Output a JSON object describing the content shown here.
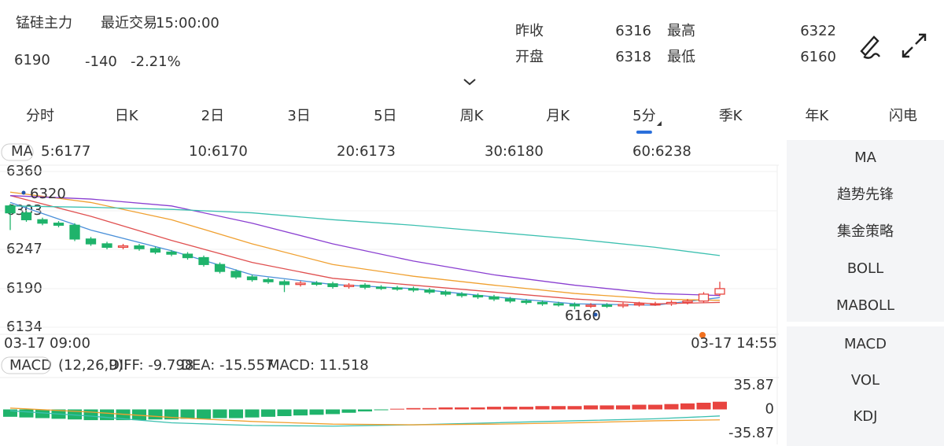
{
  "header": {
    "name": "锰硅主力",
    "last_trade_label": "最近交易",
    "last_trade_time": "15:00:00",
    "price": "6190",
    "change": "-140",
    "change_pct": "-2.21%",
    "stats": [
      {
        "label": "昨收",
        "value": "6316"
      },
      {
        "label": "最高",
        "value": "6322"
      },
      {
        "label": "开盘",
        "value": "6318"
      },
      {
        "label": "最低",
        "value": "6160"
      }
    ]
  },
  "tabs": [
    "分时",
    "日K",
    "2日",
    "3日",
    "5日",
    "周K",
    "月K",
    "5分",
    "季K",
    "年K",
    "闪电"
  ],
  "kline": {
    "legend": [
      {
        "text": "MA",
        "color": "#555555"
      },
      {
        "text": "5:6177",
        "color": "#4a90d9"
      },
      {
        "text": "10:6170",
        "color": "#e05050"
      },
      {
        "text": "20:6173",
        "color": "#f0a030"
      },
      {
        "text": "30:6180",
        "color": "#2255aa"
      },
      {
        "text": "60:6238",
        "color": "#3cc0b0"
      }
    ],
    "ylim": [
      6134,
      6360
    ],
    "yticks": [
      6360,
      6303,
      6247,
      6190,
      6134
    ],
    "x_labels": [
      "03-17 09:00",
      "03-17 14:55"
    ],
    "annotations": [
      "6320",
      "6160"
    ],
    "up_color": "#e8443f",
    "down_color": "#1fb36b",
    "open": [
      6310,
      6300,
      6290,
      6285,
      6282,
      6262,
      6255,
      6250,
      6252,
      6248,
      6243,
      6240,
      6235,
      6225,
      6215,
      6207,
      6203,
      6200,
      6196,
      6198,
      6197,
      6193,
      6195,
      6192,
      6191,
      6190,
      6188,
      6185,
      6182,
      6180,
      6178,
      6175,
      6172,
      6170,
      6168,
      6167,
      6165,
      6166,
      6165,
      6167,
      6168,
      6168,
      6170,
      6172,
      6182
    ],
    "high": [
      6313,
      6303,
      6293,
      6288,
      6285,
      6265,
      6258,
      6255,
      6255,
      6251,
      6246,
      6243,
      6238,
      6228,
      6218,
      6210,
      6206,
      6203,
      6201,
      6201,
      6200,
      6198,
      6198,
      6195,
      6194,
      6193,
      6191,
      6188,
      6185,
      6183,
      6181,
      6178,
      6175,
      6173,
      6171,
      6170,
      6169,
      6169,
      6170,
      6171,
      6171,
      6173,
      6175,
      6185,
      6200
    ],
    "low": [
      6275,
      6287,
      6282,
      6279,
      6259,
      6252,
      6247,
      6247,
      6245,
      6240,
      6237,
      6232,
      6222,
      6212,
      6204,
      6200,
      6197,
      6185,
      6193,
      6194,
      6190,
      6190,
      6189,
      6188,
      6187,
      6185,
      6182,
      6179,
      6177,
      6175,
      6172,
      6169,
      6167,
      6165,
      6164,
      6160,
      6162,
      6162,
      6162,
      6164,
      6165,
      6165,
      6167,
      6169,
      6179
    ],
    "close": [
      6300,
      6290,
      6285,
      6282,
      6262,
      6255,
      6250,
      6252,
      6248,
      6243,
      6240,
      6235,
      6225,
      6215,
      6207,
      6203,
      6200,
      6196,
      6198,
      6197,
      6193,
      6195,
      6192,
      6191,
      6190,
      6188,
      6185,
      6182,
      6180,
      6178,
      6175,
      6172,
      6170,
      6168,
      6167,
      6165,
      6166,
      6165,
      6167,
      6168,
      6168,
      6170,
      6172,
      6182,
      6190
    ],
    "ma_x": [
      0,
      5,
      10,
      15,
      20,
      25,
      30,
      35,
      40,
      44
    ],
    "ma": [
      {
        "color": "#4a90d9",
        "values": [
          6315,
          6275,
          6245,
          6210,
          6196,
          6190,
          6178,
          6168,
          6166,
          6177
        ]
      },
      {
        "color": "#e05050",
        "values": [
          6325,
          6295,
          6260,
          6228,
          6205,
          6195,
          6185,
          6175,
          6168,
          6170
        ]
      },
      {
        "color": "#f0a030",
        "values": [
          6330,
          6315,
          6290,
          6255,
          6225,
          6208,
          6195,
          6183,
          6175,
          6173
        ]
      },
      {
        "color": "#8a3fd1",
        "values": [
          6325,
          6320,
          6310,
          6285,
          6255,
          6230,
          6210,
          6195,
          6183,
          6180
        ]
      },
      {
        "color": "#3cc0b0",
        "values": [
          6310,
          6308,
          6305,
          6300,
          6290,
          6282,
          6272,
          6262,
          6250,
          6238
        ]
      }
    ]
  },
  "macd": {
    "legend": [
      {
        "text": "MACD",
        "color": "#555555"
      },
      {
        "text": "(12,26,9):",
        "color": "#555555"
      },
      {
        "text": "DIFF: -9.798",
        "color": "#3cc0b0"
      },
      {
        "text": "DEA: -15.557",
        "color": "#f0a030"
      },
      {
        "text": "MACD: 11.518",
        "color": "#8a3fd1"
      }
    ],
    "ylim": [
      -35.87,
      35.87
    ],
    "yticks": [
      35.87,
      0,
      -35.87
    ],
    "bars": [
      -11,
      -12,
      -13,
      -14,
      -15,
      -16,
      -16,
      -16,
      -16,
      -15,
      -15,
      -14,
      -14,
      -13,
      -13,
      -12,
      -11,
      -10,
      -9,
      -8,
      -7,
      -5,
      -3,
      -1,
      1,
      2,
      2,
      3,
      3,
      3,
      4,
      4,
      4,
      5,
      5,
      5,
      6,
      6,
      6,
      7,
      7,
      8,
      9,
      10,
      11.518
    ],
    "diff": [
      -2,
      -10,
      -20,
      -24,
      -25,
      -23,
      -20,
      -17,
      -14,
      -9.798
    ],
    "dea": [
      2,
      -4,
      -12,
      -18,
      -22,
      -23,
      -22,
      -20,
      -17,
      -15.557
    ]
  },
  "side_menu": [
    [
      "MA",
      "趋势先锋",
      "集金策略",
      "BOLL",
      "MABOLL"
    ],
    [
      "MACD",
      "VOL",
      "KDJ"
    ]
  ]
}
